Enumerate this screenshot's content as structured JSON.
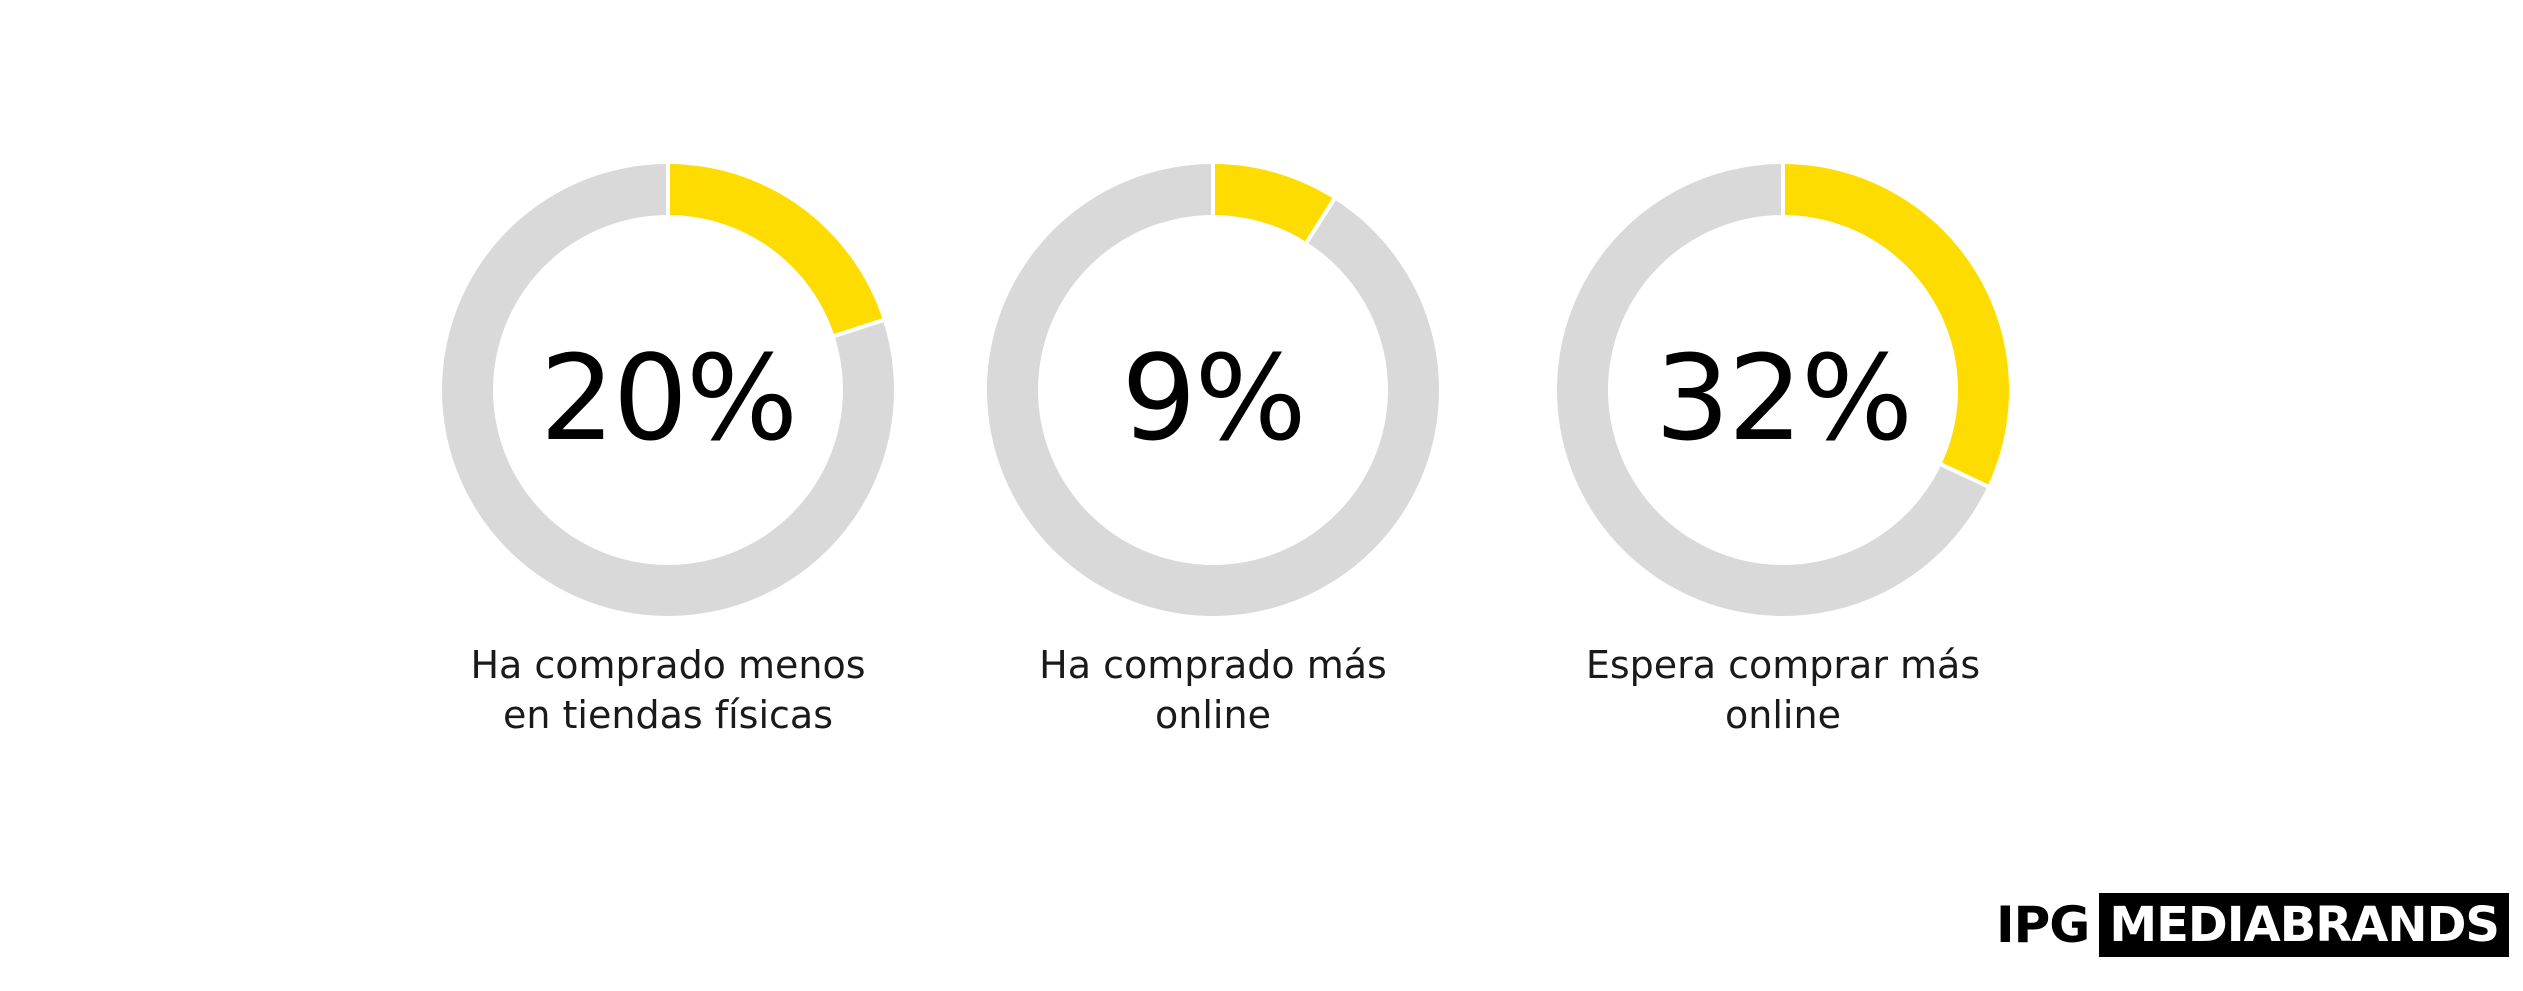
{
  "chart_data": [
    {
      "type": "pie",
      "value": 20,
      "label": "20%",
      "caption": [
        "Ha comprado menos",
        "en tiendas físicas"
      ]
    },
    {
      "type": "pie",
      "value": 9,
      "label": "9%",
      "caption": [
        "Ha comprado más",
        "online"
      ]
    },
    {
      "type": "pie",
      "value": 32,
      "label": "32%",
      "caption": [
        "Espera comprar más",
        "online"
      ]
    }
  ],
  "colors": {
    "highlight": "#FFDC00",
    "remainder": "#D9D9D9",
    "separator": "#FFFFFF"
  },
  "logo": {
    "ipg": "IPG",
    "mediabrands": "MEDIABRANDS"
  }
}
